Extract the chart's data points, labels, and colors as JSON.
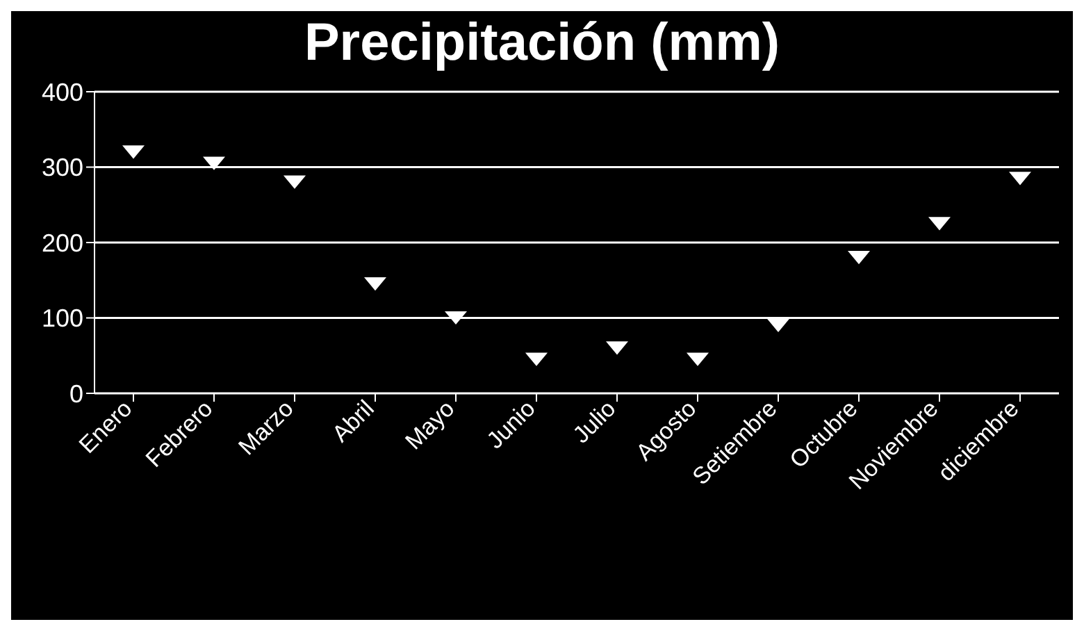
{
  "chart_data": {
    "type": "scatter",
    "title": "Precipitación (mm)",
    "categories": [
      "Enero",
      "Febrero",
      "Marzo",
      "Abril",
      "Mayo",
      "Junio",
      "Julio",
      "Agosto",
      "Setiembre",
      "Octubre",
      "Noviembre",
      "diciembre"
    ],
    "series": [
      {
        "color": "#ffffff",
        "values": [
          320,
          305,
          280,
          145,
          100,
          45,
          60,
          45,
          90,
          180,
          225,
          285
        ]
      }
    ],
    "ylim": [
      0,
      400
    ],
    "yticks": [
      0,
      100,
      200,
      300,
      400
    ],
    "grid": "y",
    "marker": "triangle"
  }
}
